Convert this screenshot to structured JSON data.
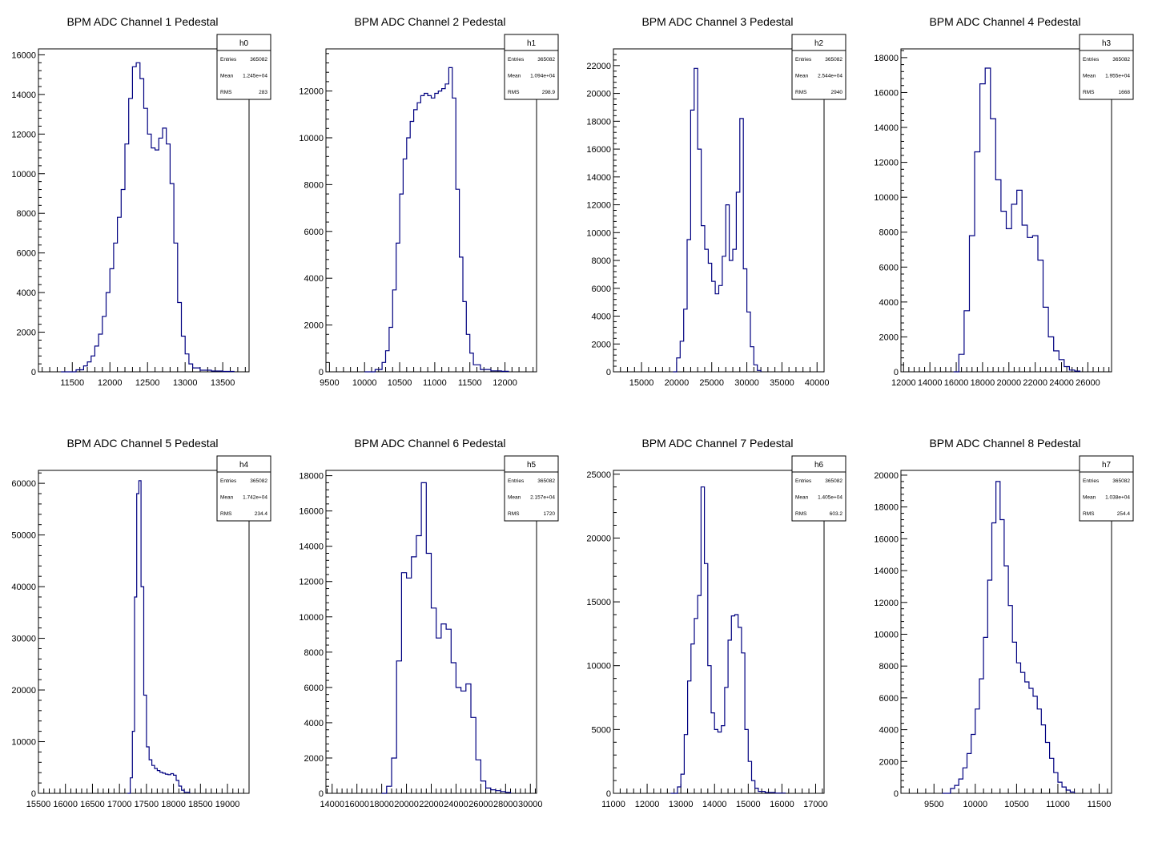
{
  "chart_data": [
    {
      "type": "histogram",
      "title": "BPM ADC Channel 1 Pedestal",
      "stats": {
        "name": "h0",
        "entries_label": "Entries",
        "entries": "365082",
        "mean_label": "Mean",
        "mean": "1.245e+04",
        "rms_label": "RMS",
        "rms": "283"
      },
      "xlim": [
        11050,
        13850
      ],
      "ylim": [
        0,
        16300
      ],
      "xticks": [
        11500,
        12000,
        12500,
        13000,
        13500
      ],
      "xtick_labels": [
        "11500",
        "12000",
        "12500",
        "13000",
        "13500"
      ],
      "yticks": [
        0,
        2000,
        4000,
        6000,
        8000,
        10000,
        12000,
        14000,
        16000
      ],
      "ytick_labels": [
        "0",
        "2000",
        "4000",
        "6000",
        "8000",
        "10000",
        "12000",
        "14000",
        "16000"
      ],
      "color": "#000080",
      "x": [
        11350,
        11550,
        11650,
        11700,
        11750,
        11800,
        11850,
        11900,
        11950,
        12000,
        12050,
        12100,
        12150,
        12200,
        12250,
        12300,
        12350,
        12400,
        12450,
        12500,
        12550,
        12600,
        12650,
        12700,
        12750,
        12800,
        12850,
        12900,
        12950,
        13000,
        13050,
        13100,
        13200,
        13350,
        13500,
        13650
      ],
      "y": [
        0,
        100,
        300,
        500,
        800,
        1300,
        1900,
        2800,
        4000,
        5200,
        6500,
        7800,
        9200,
        11500,
        13800,
        15400,
        15600,
        14800,
        13300,
        12000,
        11300,
        11200,
        11800,
        12300,
        11500,
        9500,
        6500,
        3500,
        1800,
        900,
        400,
        200,
        80,
        40,
        20,
        0
      ]
    },
    {
      "type": "histogram",
      "title": "BPM ADC Channel 2 Pedestal",
      "stats": {
        "name": "h1",
        "entries_label": "Entries",
        "entries": "365082",
        "mean_label": "Mean",
        "mean": "1.094e+04",
        "rms_label": "RMS",
        "rms": "298.9"
      },
      "xlim": [
        9450,
        12450
      ],
      "ylim": [
        0,
        13800
      ],
      "xticks": [
        9500,
        10000,
        10500,
        11000,
        11500,
        12000
      ],
      "xtick_labels": [
        "9500",
        "10000",
        "10500",
        "11000",
        "11500",
        "12000"
      ],
      "yticks": [
        0,
        2000,
        4000,
        6000,
        8000,
        10000,
        12000
      ],
      "ytick_labels": [
        "0",
        "2000",
        "4000",
        "6000",
        "8000",
        "10000",
        "12000"
      ],
      "color": "#000080",
      "x": [
        10000,
        10150,
        10250,
        10300,
        10350,
        10400,
        10450,
        10500,
        10550,
        10600,
        10650,
        10700,
        10750,
        10800,
        10850,
        10900,
        10950,
        11000,
        11050,
        11100,
        11150,
        11200,
        11250,
        11300,
        11350,
        11400,
        11450,
        11500,
        11550,
        11650,
        11800,
        11950,
        12050
      ],
      "y": [
        0,
        100,
        400,
        900,
        1900,
        3500,
        5500,
        7600,
        9100,
        10000,
        10700,
        11200,
        11500,
        11800,
        11900,
        11800,
        11700,
        11900,
        12000,
        12100,
        12300,
        13000,
        11700,
        7800,
        4900,
        3000,
        1600,
        800,
        300,
        100,
        40,
        20,
        0
      ]
    },
    {
      "type": "histogram",
      "title": "BPM ADC Channel 3 Pedestal",
      "stats": {
        "name": "h2",
        "entries_label": "Entries",
        "entries": "365082",
        "mean_label": "Mean",
        "mean": "2.544e+04",
        "rms_label": "RMS",
        "rms": "2940"
      },
      "xlim": [
        11000,
        41000
      ],
      "ylim": [
        0,
        23200
      ],
      "xticks": [
        15000,
        20000,
        25000,
        30000,
        35000,
        40000
      ],
      "xtick_labels": [
        "15000",
        "20000",
        "25000",
        "30000",
        "35000",
        "40000"
      ],
      "yticks": [
        0,
        2000,
        4000,
        6000,
        8000,
        10000,
        12000,
        14000,
        16000,
        18000,
        20000,
        22000
      ],
      "ytick_labels": [
        "0",
        "2000",
        "4000",
        "6000",
        "8000",
        "10000",
        "12000",
        "14000",
        "16000",
        "18000",
        "20000",
        "22000"
      ],
      "color": "#000080",
      "x": [
        19500,
        20000,
        20500,
        21000,
        21500,
        22000,
        22500,
        23000,
        23500,
        24000,
        24500,
        25000,
        25500,
        26000,
        26500,
        27000,
        27500,
        28000,
        28500,
        29000,
        29500,
        30000,
        30500,
        31000,
        31500,
        32000
      ],
      "y": [
        0,
        1000,
        2200,
        4500,
        9500,
        18800,
        21800,
        16000,
        10500,
        8800,
        7800,
        6500,
        5600,
        6200,
        8300,
        12000,
        8000,
        8800,
        12900,
        18200,
        7400,
        4300,
        1800,
        500,
        100,
        0
      ]
    },
    {
      "type": "histogram",
      "title": "BPM ADC Channel 4 Pedestal",
      "stats": {
        "name": "h3",
        "entries_label": "Entries",
        "entries": "365082",
        "mean_label": "Mean",
        "mean": "1.955e+04",
        "rms_label": "RMS",
        "rms": "1668"
      },
      "xlim": [
        11800,
        27800
      ],
      "ylim": [
        0,
        18500
      ],
      "xticks": [
        12000,
        14000,
        16000,
        18000,
        20000,
        22000,
        24000,
        26000
      ],
      "xtick_labels": [
        "12000",
        "14000",
        "16000",
        "18000",
        "20000",
        "22000",
        "24000",
        "26000"
      ],
      "yticks": [
        0,
        2000,
        4000,
        6000,
        8000,
        10000,
        12000,
        14000,
        16000,
        18000
      ],
      "ytick_labels": [
        "0",
        "2000",
        "4000",
        "6000",
        "8000",
        "10000",
        "12000",
        "14000",
        "16000",
        "18000"
      ],
      "color": "#000080",
      "x": [
        15800,
        16200,
        16600,
        17000,
        17400,
        17800,
        18200,
        18600,
        19000,
        19400,
        19800,
        20200,
        20600,
        21000,
        21400,
        21800,
        22200,
        22600,
        23000,
        23400,
        23800,
        24200,
        24600,
        25000,
        25400
      ],
      "y": [
        0,
        1000,
        3500,
        7800,
        12600,
        16500,
        17400,
        14500,
        11000,
        9200,
        8200,
        9600,
        10400,
        8400,
        7700,
        7800,
        6400,
        3700,
        2000,
        1200,
        700,
        300,
        100,
        40,
        0
      ]
    },
    {
      "type": "histogram",
      "title": "BPM ADC Channel 5 Pedestal",
      "stats": {
        "name": "h4",
        "entries_label": "Entries",
        "entries": "365082",
        "mean_label": "Mean",
        "mean": "1.742e+04",
        "rms_label": "RMS",
        "rms": "234.4"
      },
      "xlim": [
        15500,
        19400
      ],
      "ylim": [
        0,
        62500
      ],
      "xticks": [
        15500,
        16000,
        16500,
        17000,
        17500,
        18000,
        18500,
        19000
      ],
      "xtick_labels": [
        "15500",
        "16000",
        "16500",
        "17000",
        "17500",
        "18000",
        "18500",
        "19000"
      ],
      "yticks": [
        0,
        10000,
        20000,
        30000,
        40000,
        50000,
        60000
      ],
      "ytick_labels": [
        "0",
        "10000",
        "20000",
        "30000",
        "40000",
        "50000",
        "60000"
      ],
      "color": "#000080",
      "x": [
        17150,
        17200,
        17240,
        17280,
        17320,
        17360,
        17400,
        17450,
        17500,
        17550,
        17600,
        17650,
        17700,
        17750,
        17800,
        17850,
        17900,
        17950,
        18000,
        18050,
        18100,
        18150,
        18200,
        18300
      ],
      "y": [
        0,
        3000,
        12000,
        38000,
        58000,
        60500,
        40000,
        19000,
        9000,
        6500,
        5400,
        4800,
        4400,
        4100,
        3900,
        3700,
        3600,
        3800,
        3500,
        2500,
        1400,
        600,
        200,
        0
      ]
    },
    {
      "type": "histogram",
      "title": "BPM ADC Channel 6 Pedestal",
      "stats": {
        "name": "h5",
        "entries_label": "Entries",
        "entries": "365082",
        "mean_label": "Mean",
        "mean": "2.157e+04",
        "rms_label": "RMS",
        "rms": "1720"
      },
      "xlim": [
        13500,
        30500
      ],
      "ylim": [
        0,
        18300
      ],
      "xticks": [
        14000,
        16000,
        18000,
        20000,
        22000,
        24000,
        26000,
        28000,
        30000
      ],
      "xtick_labels": [
        "14000",
        "16000",
        "18000",
        "20000",
        "22000",
        "24000",
        "26000",
        "28000",
        "30000"
      ],
      "yticks": [
        0,
        2000,
        4000,
        6000,
        8000,
        10000,
        12000,
        14000,
        16000,
        18000
      ],
      "ytick_labels": [
        "0",
        "2000",
        "4000",
        "6000",
        "8000",
        "10000",
        "12000",
        "14000",
        "16000",
        "18000"
      ],
      "color": "#000080",
      "x": [
        18000,
        18400,
        18800,
        19200,
        19600,
        20000,
        20400,
        20800,
        21200,
        21600,
        22000,
        22400,
        22800,
        23200,
        23600,
        24000,
        24400,
        24800,
        25200,
        25600,
        26000,
        26400,
        26800,
        27200,
        27600,
        28000,
        28400
      ],
      "y": [
        0,
        400,
        2000,
        7500,
        12500,
        12200,
        13400,
        14600,
        17600,
        13600,
        10500,
        8800,
        9600,
        9300,
        7400,
        6000,
        5800,
        6200,
        4300,
        1900,
        700,
        300,
        200,
        150,
        100,
        50,
        0
      ]
    },
    {
      "type": "histogram",
      "title": "BPM ADC Channel 7 Pedestal",
      "stats": {
        "name": "h6",
        "entries_label": "Entries",
        "entries": "365082",
        "mean_label": "Mean",
        "mean": "1.405e+04",
        "rms_label": "RMS",
        "rms": "603.2"
      },
      "xlim": [
        11000,
        17250
      ],
      "ylim": [
        0,
        25300
      ],
      "xticks": [
        11000,
        12000,
        13000,
        14000,
        15000,
        16000,
        17000
      ],
      "xtick_labels": [
        "11000",
        "12000",
        "13000",
        "14000",
        "15000",
        "16000",
        "17000"
      ],
      "yticks": [
        0,
        5000,
        10000,
        15000,
        20000,
        25000
      ],
      "ytick_labels": [
        "0",
        "5000",
        "10000",
        "15000",
        "20000",
        "25000"
      ],
      "color": "#000080",
      "x": [
        12700,
        12900,
        13000,
        13100,
        13200,
        13300,
        13400,
        13500,
        13600,
        13700,
        13800,
        13900,
        14000,
        14100,
        14200,
        14300,
        14400,
        14500,
        14600,
        14700,
        14800,
        14900,
        15000,
        15100,
        15200,
        15300,
        15500,
        15800,
        16100
      ],
      "y": [
        0,
        500,
        1500,
        4600,
        8800,
        11700,
        13700,
        15500,
        24000,
        18000,
        10000,
        6300,
        5000,
        4800,
        5300,
        8300,
        12000,
        13900,
        14000,
        13000,
        11000,
        5000,
        2500,
        1000,
        400,
        150,
        60,
        20,
        0
      ]
    },
    {
      "type": "histogram",
      "title": "BPM ADC Channel 8 Pedestal",
      "stats": {
        "name": "h7",
        "entries_label": "Entries",
        "entries": "365082",
        "mean_label": "Mean",
        "mean": "1.038e+04",
        "rms_label": "RMS",
        "rms": "254.4"
      },
      "xlim": [
        9100,
        11650
      ],
      "ylim": [
        0,
        20300
      ],
      "xticks": [
        9500,
        10000,
        10500,
        11000,
        11500
      ],
      "xtick_labels": [
        "9500",
        "10000",
        "10500",
        "11000",
        "11500"
      ],
      "yticks": [
        0,
        2000,
        4000,
        6000,
        8000,
        10000,
        12000,
        14000,
        16000,
        18000,
        20000
      ],
      "ytick_labels": [
        "0",
        "2000",
        "4000",
        "6000",
        "8000",
        "10000",
        "12000",
        "14000",
        "16000",
        "18000",
        "20000"
      ],
      "color": "#000080",
      "x": [
        9600,
        9700,
        9750,
        9800,
        9850,
        9900,
        9950,
        10000,
        10050,
        10100,
        10150,
        10200,
        10250,
        10300,
        10350,
        10400,
        10450,
        10500,
        10550,
        10600,
        10650,
        10700,
        10750,
        10800,
        10850,
        10900,
        10950,
        11000,
        11050,
        11100,
        11150,
        11200
      ],
      "y": [
        0,
        300,
        500,
        900,
        1600,
        2500,
        3700,
        5300,
        7200,
        9800,
        13400,
        17000,
        19600,
        17200,
        14300,
        11800,
        9500,
        8200,
        7600,
        7000,
        6600,
        6100,
        5300,
        4300,
        3200,
        2200,
        1300,
        700,
        400,
        200,
        80,
        0
      ]
    }
  ]
}
